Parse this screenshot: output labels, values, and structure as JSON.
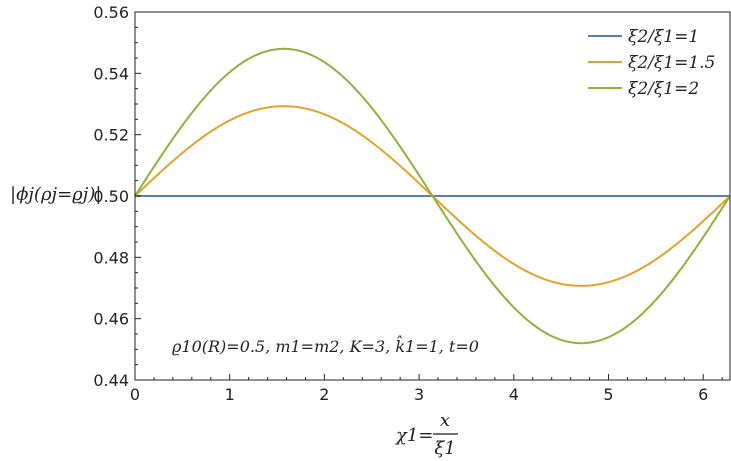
{
  "chart_data": {
    "type": "line",
    "xlim": [
      0,
      6.283
    ],
    "ylim": [
      0.44,
      0.56
    ],
    "x_ticks": [
      0,
      1,
      2,
      3,
      4,
      5,
      6
    ],
    "y_ticks": [
      0.44,
      0.46,
      0.48,
      0.5,
      0.52,
      0.54,
      0.56
    ],
    "x_tick_labels": [
      "0",
      "1",
      "2",
      "3",
      "4",
      "5",
      "6"
    ],
    "y_tick_labels": [
      "0.44",
      "0.46",
      "0.48",
      "0.50",
      "0.52",
      "0.54",
      "0.56"
    ],
    "ylabel": "|ϕj(ρj=ϱj)|",
    "xlabel_lhs": "χ1=",
    "xlabel_num": "x",
    "xlabel_den": "ξ1",
    "annotation": "ϱ10(R)=0.5, m1=m2, K=3, k̂1=1, t=0",
    "legend_position": "top-right",
    "grid": false,
    "x": [
      0,
      0.524,
      1.047,
      1.571,
      2.094,
      2.618,
      3.142,
      3.665,
      4.189,
      4.712,
      5.236,
      5.76,
      6.283
    ],
    "series": [
      {
        "name": "ξ2/ξ1=1",
        "color": "#5b7fb0",
        "values": [
          0.5,
          0.5,
          0.5,
          0.5,
          0.5,
          0.5,
          0.5,
          0.5,
          0.5,
          0.5,
          0.5,
          0.5,
          0.5
        ]
      },
      {
        "name": "ξ2/ξ1=1.5",
        "color": "#e5a22a",
        "values": [
          0.5,
          0.5146,
          0.5253,
          0.5293,
          0.5253,
          0.5146,
          0.5,
          0.4854,
          0.4747,
          0.4707,
          0.4747,
          0.4854,
          0.5
        ]
      },
      {
        "name": "ξ2/ξ1=2",
        "color": "#8fb13a",
        "values": [
          0.5,
          0.524,
          0.5415,
          0.548,
          0.5415,
          0.524,
          0.5,
          0.476,
          0.4585,
          0.452,
          0.4585,
          0.476,
          0.5
        ]
      }
    ]
  }
}
